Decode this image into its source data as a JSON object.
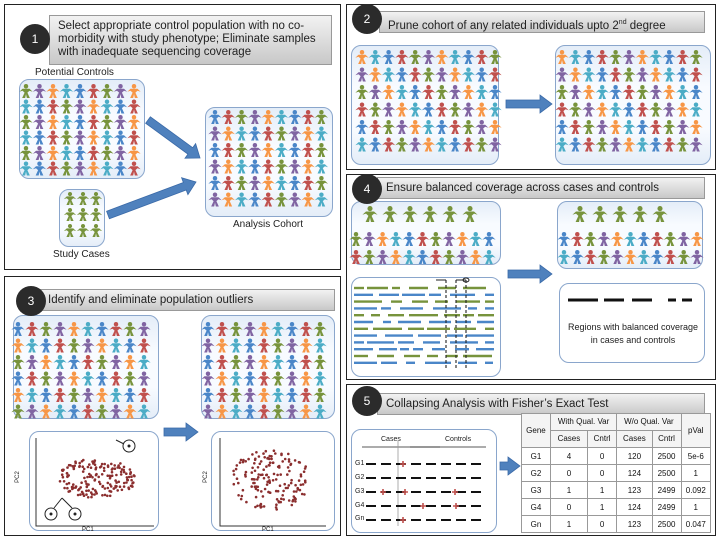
{
  "panel1": {
    "number": "1",
    "title": "Select appropriate control population with no co-morbidity with study phenotype; Eliminate samples with inadequate sequencing coverage",
    "potential_controls_label": "Potential Controls",
    "study_cases_label": "Study Cases",
    "analysis_cohort_label": "Analysis Cohort"
  },
  "panel2": {
    "number": "2",
    "title_main": "Prune cohort of any related individuals upto 2",
    "title_sup": "nd",
    "title_end": " degree"
  },
  "panel3": {
    "number": "3",
    "title": "Identify and eliminate population outliers",
    "pc_y_label": "PC2",
    "pc_x_label": "PC1"
  },
  "panel4": {
    "number": "4",
    "title": "Ensure balanced coverage across cases and controls",
    "regions_label": "Regions with balanced coverage in cases and controls"
  },
  "panel5": {
    "number": "5",
    "title": "Collapsing Analysis with Fisher’s Exact Test",
    "cases_label": "Cases",
    "controls_label": "Controls",
    "gene_row_labels": [
      "G1",
      "G2",
      "G3",
      "G4",
      "Gn"
    ],
    "table": {
      "headers": [
        "Gene",
        "With Qual. Var",
        "W/o Qual. Var",
        "pVal"
      ],
      "subheaders": [
        "Cases",
        "Cntrl",
        "Cases",
        "Cntrl"
      ],
      "rows": [
        [
          "G1",
          "4",
          "0",
          "120",
          "2500",
          "5e-6"
        ],
        [
          "G2",
          "0",
          "0",
          "124",
          "2500",
          "1"
        ],
        [
          "G3",
          "1",
          "1",
          "123",
          "2499",
          "0.092"
        ],
        [
          "G4",
          "0",
          "1",
          "124",
          "2499",
          "1"
        ],
        [
          "Gn",
          "1",
          "0",
          "123",
          "2500",
          "0.047"
        ]
      ]
    }
  },
  "colors": {
    "blue": "#4a86c8",
    "red": "#c0504d",
    "green": "#77933c",
    "purple": "#8064a2",
    "orange": "#f79646",
    "teal": "#4bacc6",
    "arrow": "#4f81bd",
    "scatter": "#8b2e2e"
  }
}
